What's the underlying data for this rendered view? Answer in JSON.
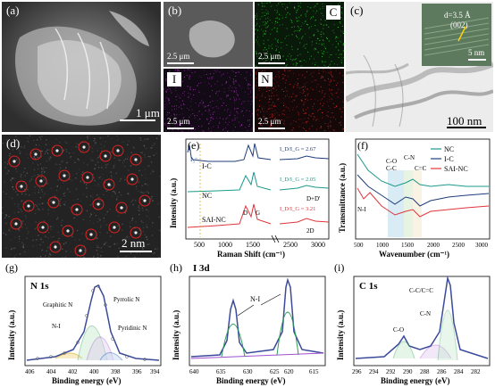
{
  "panels": {
    "a": {
      "label": "(a)",
      "scale": "1 μm"
    },
    "b": {
      "label": "(b)",
      "maps": [
        {
          "element": "",
          "scale": "2.5 μm",
          "color": "#777777"
        },
        {
          "element": "C",
          "scale": "2.5 μm",
          "color": "#2bd42b"
        },
        {
          "element": "I",
          "scale": "2.5 μm",
          "color": "#b02cc6"
        },
        {
          "element": "N",
          "scale": "2.5 μm",
          "color": "#d42a2a"
        }
      ]
    },
    "c": {
      "label": "(c)",
      "scale": "100 nm",
      "inset_d": "d=3.5 Å",
      "inset_plane": "(002)",
      "inset_scale": "5 nm"
    },
    "d": {
      "label": "(d)",
      "scale": "2 nm"
    },
    "e": {
      "label": "(e)",
      "xlabel": "Raman Shift (cm⁻¹)",
      "ylabel": "Intensity (a.u.)",
      "ticks": [
        "500",
        "1000",
        "1500",
        "2500",
        "3000"
      ],
      "series": [
        "I-C",
        "NC",
        "SAI-NC"
      ],
      "ratios": [
        "I_D/I_G = 2.67",
        "I_D/I_G = 2.05",
        "I_D/I_G = 3.21"
      ],
      "peaks": [
        "D",
        "G",
        "2D",
        "D+D'"
      ],
      "i_label": "I₃⁻"
    },
    "f": {
      "label": "(f)",
      "xlabel": "Wavenumber (cm⁻¹)",
      "ylabel": "Transmittance (a.u.)",
      "ticks": [
        "500",
        "1000",
        "1500",
        "2000",
        "2500",
        "3000"
      ],
      "legend": [
        {
          "name": "NC",
          "color": "#1a9a8a"
        },
        {
          "name": "I-C",
          "color": "#1f3d7a"
        },
        {
          "name": "SAI-NC",
          "color": "#e0343a"
        }
      ],
      "annotations": [
        "C-O",
        "C-C",
        "C-N",
        "C=C",
        "N-I"
      ]
    },
    "g": {
      "label": "(g)",
      "title": "N 1s",
      "xlabel": "Binding energy (eV)",
      "ylabel": "Intensity (a.u.)",
      "ticks": [
        "406",
        "404",
        "402",
        "400",
        "398",
        "396",
        "394"
      ],
      "annotations": [
        "Graphitic N",
        "Pyrrolic N",
        "N-I",
        "Pyridinic N"
      ]
    },
    "h": {
      "label": "(h)",
      "title": "I 3d",
      "xlabel": "Binding energy (eV)",
      "ylabel": "Intensity (a.u.)",
      "ticks": [
        "640",
        "635",
        "630",
        "625",
        "620",
        "615"
      ],
      "annotations": [
        "N-I"
      ]
    },
    "i": {
      "label": "(i)",
      "title": "C 1s",
      "xlabel": "Binding energy (eV)",
      "ylabel": "Intensity (a.u.)",
      "ticks": [
        "296",
        "294",
        "292",
        "290",
        "288",
        "286",
        "284",
        "282"
      ],
      "annotations": [
        "C-C/C=C",
        "C-N",
        "C-O"
      ]
    }
  }
}
